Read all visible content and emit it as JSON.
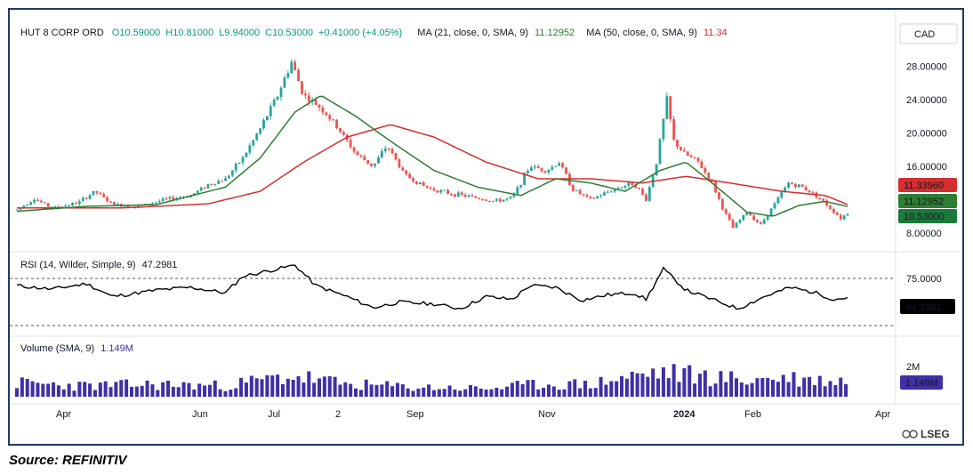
{
  "header": {
    "symbol": "HUT 8 CORP ORD",
    "open": "O10.59000",
    "high": "H10.81000",
    "low": "L9.94000",
    "close": "C10.53000",
    "change": "+0.41000 (+4.05%)",
    "ma21_label": "MA (21, close, 0, SMA, 9)",
    "ma21_value": "11.12952",
    "ma50_label": "MA (50, close, 0, SMA, 9)",
    "ma50_value": "11.34"
  },
  "currency": "CAD",
  "rsi": {
    "label": "RSI (14, Wilder, Simple, 9)",
    "value": "47.2981",
    "level_label": "75.0000"
  },
  "volume": {
    "label": "Volume (SMA, 9)",
    "value": "1.149M",
    "level_label": "2M"
  },
  "logo_text": "LSEG",
  "source": "Source: REFINITIV",
  "colors": {
    "up": "#26a69a",
    "down": "#ef5350",
    "ma21": "#2e7d32",
    "ma50": "#d32f2f",
    "rsi": "#000000",
    "volume": "#3f2fa8"
  },
  "chart_data": {
    "type": "candlestick",
    "x_ticks": [
      "Apr",
      "Jun",
      "Jul",
      "2",
      "Sep",
      "Nov",
      "2024",
      "Feb",
      "Apr"
    ],
    "price_axis": {
      "ticks": [
        "28.00000",
        "24.00000",
        "20.00000",
        "16.00000",
        "8.00000"
      ],
      "range": [
        6.5,
        30.5
      ]
    },
    "price_badges": {
      "ma50": "11.33960",
      "ma21": "11.12952",
      "last": "10.53000"
    },
    "ohlc_keypoints": [
      {
        "x": 0,
        "close": 10.8
      },
      {
        "x": 10,
        "close": 12.1
      },
      {
        "x": 20,
        "close": 11.0
      },
      {
        "x": 35,
        "close": 11.6
      },
      {
        "x": 45,
        "close": 13.0
      },
      {
        "x": 55,
        "close": 11.4
      },
      {
        "x": 70,
        "close": 11.2
      },
      {
        "x": 85,
        "close": 12.0
      },
      {
        "x": 100,
        "close": 12.5
      },
      {
        "x": 110,
        "close": 13.8
      },
      {
        "x": 120,
        "close": 14.5
      },
      {
        "x": 130,
        "close": 17.0
      },
      {
        "x": 140,
        "close": 20.5
      },
      {
        "x": 150,
        "close": 24.5
      },
      {
        "x": 158,
        "close": 28.5
      },
      {
        "x": 165,
        "close": 24.5
      },
      {
        "x": 175,
        "close": 23.0
      },
      {
        "x": 185,
        "close": 20.5
      },
      {
        "x": 195,
        "close": 17.5
      },
      {
        "x": 205,
        "close": 16.0
      },
      {
        "x": 213,
        "close": 18.5
      },
      {
        "x": 223,
        "close": 15.0
      },
      {
        "x": 235,
        "close": 13.5
      },
      {
        "x": 248,
        "close": 12.8
      },
      {
        "x": 262,
        "close": 12.3
      },
      {
        "x": 275,
        "close": 11.8
      },
      {
        "x": 285,
        "close": 12.2
      },
      {
        "x": 295,
        "close": 16.0
      },
      {
        "x": 305,
        "close": 15.5
      },
      {
        "x": 312,
        "close": 16.5
      },
      {
        "x": 320,
        "close": 13.2
      },
      {
        "x": 330,
        "close": 12.0
      },
      {
        "x": 345,
        "close": 13.4
      },
      {
        "x": 355,
        "close": 14.0
      },
      {
        "x": 362,
        "close": 12.0
      },
      {
        "x": 368,
        "close": 16.5
      },
      {
        "x": 374,
        "close": 24.0
      },
      {
        "x": 378,
        "close": 19.0
      },
      {
        "x": 384,
        "close": 17.5
      },
      {
        "x": 392,
        "close": 16.5
      },
      {
        "x": 400,
        "close": 14.0
      },
      {
        "x": 406,
        "close": 11.0
      },
      {
        "x": 412,
        "close": 8.6
      },
      {
        "x": 420,
        "close": 10.5
      },
      {
        "x": 428,
        "close": 9.0
      },
      {
        "x": 436,
        "close": 11.5
      },
      {
        "x": 444,
        "close": 14.0
      },
      {
        "x": 452,
        "close": 13.5
      },
      {
        "x": 460,
        "close": 12.5
      },
      {
        "x": 468,
        "close": 11.0
      },
      {
        "x": 474,
        "close": 9.8
      },
      {
        "x": 479,
        "close": 10.53
      }
    ],
    "ma21_keypoints": [
      {
        "x": 0,
        "y": 10.6
      },
      {
        "x": 40,
        "y": 11.2
      },
      {
        "x": 80,
        "y": 11.4
      },
      {
        "x": 120,
        "y": 13.5
      },
      {
        "x": 140,
        "y": 17.0
      },
      {
        "x": 160,
        "y": 22.5
      },
      {
        "x": 175,
        "y": 24.5
      },
      {
        "x": 195,
        "y": 22.0
      },
      {
        "x": 215,
        "y": 19.0
      },
      {
        "x": 240,
        "y": 15.5
      },
      {
        "x": 265,
        "y": 13.5
      },
      {
        "x": 290,
        "y": 12.5
      },
      {
        "x": 310,
        "y": 14.5
      },
      {
        "x": 330,
        "y": 14.0
      },
      {
        "x": 350,
        "y": 13.0
      },
      {
        "x": 370,
        "y": 15.5
      },
      {
        "x": 385,
        "y": 16.5
      },
      {
        "x": 400,
        "y": 14.0
      },
      {
        "x": 420,
        "y": 10.5
      },
      {
        "x": 435,
        "y": 10.0
      },
      {
        "x": 450,
        "y": 11.3
      },
      {
        "x": 465,
        "y": 11.8
      },
      {
        "x": 479,
        "y": 11.13
      }
    ],
    "ma50_keypoints": [
      {
        "x": 0,
        "y": 11.0
      },
      {
        "x": 60,
        "y": 11.0
      },
      {
        "x": 110,
        "y": 11.5
      },
      {
        "x": 140,
        "y": 13.0
      },
      {
        "x": 165,
        "y": 16.5
      },
      {
        "x": 190,
        "y": 19.5
      },
      {
        "x": 215,
        "y": 21.0
      },
      {
        "x": 240,
        "y": 19.5
      },
      {
        "x": 270,
        "y": 16.5
      },
      {
        "x": 300,
        "y": 14.5
      },
      {
        "x": 330,
        "y": 14.5
      },
      {
        "x": 360,
        "y": 14.0
      },
      {
        "x": 385,
        "y": 14.8
      },
      {
        "x": 410,
        "y": 14.0
      },
      {
        "x": 440,
        "y": 13.0
      },
      {
        "x": 465,
        "y": 12.5
      },
      {
        "x": 479,
        "y": 11.34
      }
    ],
    "rsi_range": [
      10,
      85
    ],
    "rsi_keypoints": [
      {
        "x": 0,
        "y": 60
      },
      {
        "x": 20,
        "y": 56
      },
      {
        "x": 40,
        "y": 62
      },
      {
        "x": 55,
        "y": 48
      },
      {
        "x": 80,
        "y": 55
      },
      {
        "x": 100,
        "y": 58
      },
      {
        "x": 120,
        "y": 52
      },
      {
        "x": 130,
        "y": 70
      },
      {
        "x": 145,
        "y": 76
      },
      {
        "x": 160,
        "y": 82
      },
      {
        "x": 172,
        "y": 60
      },
      {
        "x": 190,
        "y": 48
      },
      {
        "x": 205,
        "y": 36
      },
      {
        "x": 220,
        "y": 42
      },
      {
        "x": 240,
        "y": 40
      },
      {
        "x": 255,
        "y": 35
      },
      {
        "x": 270,
        "y": 48
      },
      {
        "x": 285,
        "y": 45
      },
      {
        "x": 295,
        "y": 60
      },
      {
        "x": 310,
        "y": 58
      },
      {
        "x": 325,
        "y": 44
      },
      {
        "x": 340,
        "y": 50
      },
      {
        "x": 355,
        "y": 52
      },
      {
        "x": 362,
        "y": 45
      },
      {
        "x": 372,
        "y": 78
      },
      {
        "x": 385,
        "y": 55
      },
      {
        "x": 400,
        "y": 45
      },
      {
        "x": 415,
        "y": 35
      },
      {
        "x": 430,
        "y": 48
      },
      {
        "x": 445,
        "y": 58
      },
      {
        "x": 460,
        "y": 52
      },
      {
        "x": 470,
        "y": 45
      },
      {
        "x": 479,
        "y": 47.3
      }
    ],
    "volume_range": [
      0,
      2.8
    ],
    "volume_keypoints": [
      {
        "x": 0,
        "y": 1.0
      },
      {
        "x": 40,
        "y": 0.8
      },
      {
        "x": 80,
        "y": 0.9
      },
      {
        "x": 120,
        "y": 0.8
      },
      {
        "x": 140,
        "y": 1.2
      },
      {
        "x": 160,
        "y": 1.5
      },
      {
        "x": 190,
        "y": 0.9
      },
      {
        "x": 230,
        "y": 0.7
      },
      {
        "x": 270,
        "y": 0.6
      },
      {
        "x": 300,
        "y": 0.9
      },
      {
        "x": 330,
        "y": 0.9
      },
      {
        "x": 345,
        "y": 1.3
      },
      {
        "x": 370,
        "y": 1.8
      },
      {
        "x": 395,
        "y": 1.5
      },
      {
        "x": 420,
        "y": 1.2
      },
      {
        "x": 440,
        "y": 1.4
      },
      {
        "x": 460,
        "y": 1.2
      },
      {
        "x": 479,
        "y": 1.15
      }
    ]
  }
}
